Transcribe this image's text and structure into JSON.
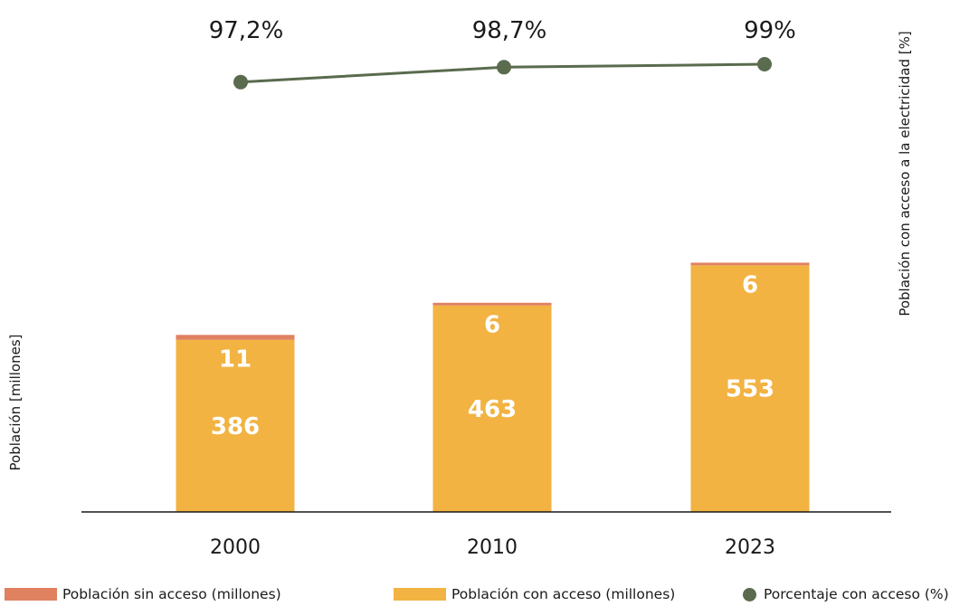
{
  "chart_data": {
    "type": "bar",
    "categories": [
      "2000",
      "2010",
      "2023"
    ],
    "series": [
      {
        "name": "Población con acceso (millones)",
        "values": [
          386,
          463,
          553
        ],
        "color": "#f2b342"
      },
      {
        "name": "Población sin acceso (millones)",
        "values": [
          11,
          6,
          6
        ],
        "color": "#e08160"
      },
      {
        "name": "Porcentaje con acceso (%)",
        "values": [
          97.2,
          98.7,
          99
        ],
        "labels": [
          "97,2%",
          "98,7%",
          "99%"
        ],
        "color": "#5a6b4e",
        "type": "line"
      }
    ],
    "stacked": true,
    "ylabel": "Población  [millones]",
    "y2label": "Población con acceso a la electricidad [%]",
    "grid": false,
    "legend_position": "bottom"
  },
  "legend": {
    "items": [
      {
        "label": "Población sin acceso (millones)"
      },
      {
        "label": "Población con acceso (millones)"
      },
      {
        "label": "Porcentaje con acceso (%)"
      }
    ]
  }
}
